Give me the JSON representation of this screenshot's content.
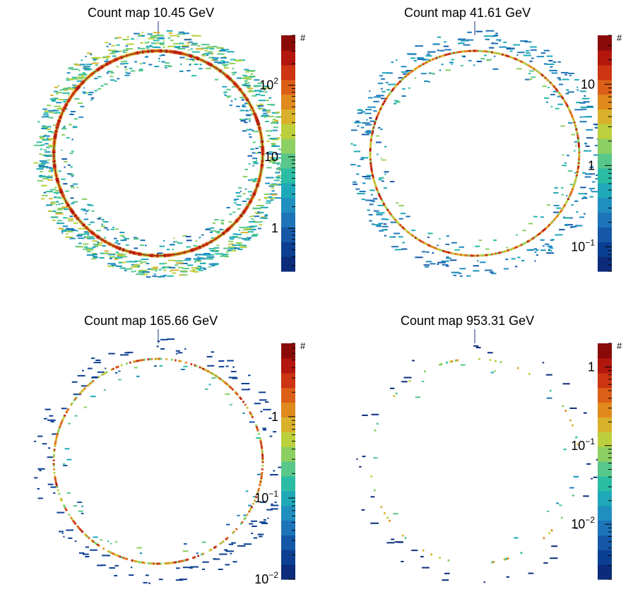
{
  "chart_data": [
    {
      "type": "heatmap",
      "title": "Count map 10.45 GeV",
      "colorbar_label": "#",
      "colorbar_scale": "log",
      "colorbar_range": [
        0.25,
        500
      ],
      "colorbar_ticks": [
        {
          "value": 1,
          "base": "1",
          "exp": ""
        },
        {
          "value": 10,
          "base": "10",
          "exp": ""
        },
        {
          "value": 100,
          "base": "10",
          "exp": "2"
        }
      ],
      "ring_peak": 300,
      "inner_ring_intensity": 60,
      "halo_density": 0.55,
      "halo_level": 0.6
    },
    {
      "type": "heatmap",
      "title": "Count map 41.61 GeV",
      "colorbar_label": "#",
      "colorbar_scale": "log",
      "colorbar_range": [
        0.05,
        40
      ],
      "colorbar_ticks": [
        {
          "value": 0.1,
          "base": "10",
          "exp": "−1"
        },
        {
          "value": 1,
          "base": "1",
          "exp": ""
        },
        {
          "value": 10,
          "base": "10",
          "exp": ""
        }
      ],
      "ring_peak": 25,
      "inner_ring_intensity": 4,
      "halo_density": 0.22,
      "halo_level": 0.3
    },
    {
      "type": "heatmap",
      "title": "Count map 165.66 GeV",
      "colorbar_label": "#",
      "colorbar_scale": "log",
      "colorbar_range": [
        0.01,
        8
      ],
      "colorbar_ticks": [
        {
          "value": 0.01,
          "base": "10",
          "exp": "−2"
        },
        {
          "value": 0.1,
          "base": "10",
          "exp": "−1"
        },
        {
          "value": 1,
          "base": "1",
          "exp": ""
        }
      ],
      "ring_peak": 4,
      "inner_ring_intensity": 0.6,
      "halo_density": 0.1,
      "halo_level": 0.05
    },
    {
      "type": "heatmap",
      "title": "Count map 953.31 GeV",
      "colorbar_label": "#",
      "colorbar_scale": "log",
      "colorbar_range": [
        0.002,
        2
      ],
      "colorbar_ticks": [
        {
          "value": 0.01,
          "base": "10",
          "exp": "−2"
        },
        {
          "value": 0.1,
          "base": "10",
          "exp": "−1"
        },
        {
          "value": 1,
          "base": "1",
          "exp": ""
        }
      ],
      "ring_peak": 0.3,
      "inner_ring_intensity": 0.05,
      "halo_density": 0.03,
      "halo_level": 0.01
    }
  ],
  "palette": [
    "#0c2b7a",
    "#0b3f91",
    "#1558a8",
    "#1e74b8",
    "#1f8fc0",
    "#1fa8b8",
    "#2bbda4",
    "#58c78a",
    "#8ccf62",
    "#bccf3c",
    "#d9b12a",
    "#e08a1e",
    "#dc5f18",
    "#cc3412",
    "#b2160d",
    "#8a0a08"
  ]
}
